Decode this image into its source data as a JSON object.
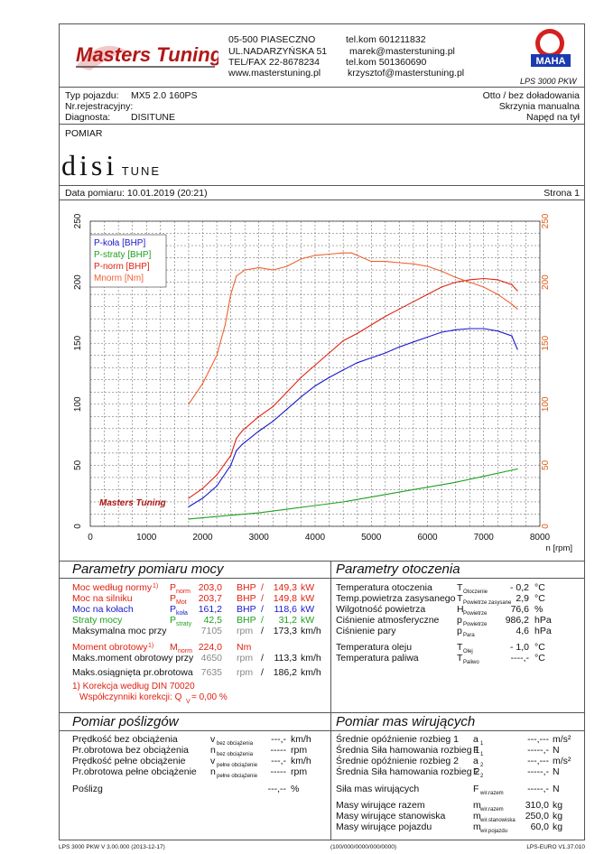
{
  "header": {
    "logo_text": "Masters Tuning",
    "address_line1": "05-500 PIASECZNO",
    "address_line2": "UL.NADARZYŃSKA 51",
    "address_line3": "TEL/FAX 22-8678234",
    "address_line4": "www.masterstuning.pl",
    "contact_line1": "tel.kom 601211832",
    "contact_line2": "marek@masterstuning.pl",
    "contact_line3": "tel.kom 501360690",
    "contact_line4": "krzysztof@masterstuning.pl",
    "maha_badge": "MAHA",
    "product": "LPS 3000 PKW"
  },
  "vehicle": {
    "type_label": "Typ pojazdu:",
    "type_value": "MX5 2.0 160PS",
    "reg_label": "Nr.rejestracyjny:",
    "reg_value": "",
    "diag_label": "Diagnosta:",
    "diag_value": "DISITUNE",
    "charge": "Otto / bez doładowania",
    "gearbox": "Skrzynia manualna",
    "drive": "Napęd na tył"
  },
  "measurement": {
    "title": "POMIAR",
    "brand_main": "disi",
    "brand_sub": "TUNE",
    "date_label": "Data pomiaru: 10.01.2019 (20:21)",
    "page_label": "Strona 1"
  },
  "chart_data": {
    "type": "line",
    "xlabel": "n [rpm]",
    "xlim": [
      0,
      8000
    ],
    "ylim_left": [
      0,
      250
    ],
    "ylim_right": [
      0,
      250
    ],
    "x_ticks": [
      "0",
      "1000",
      "2000",
      "3000",
      "4000",
      "5000",
      "6000",
      "7000",
      "8000"
    ],
    "y_ticks": [
      "0",
      "50",
      "100",
      "150",
      "200",
      "250"
    ],
    "legend": [
      {
        "label": "P-koła [BHP]",
        "color": "#1a1acc"
      },
      {
        "label": "P-straty [BHP]",
        "color": "#20a020"
      },
      {
        "label": "P-norm [BHP]",
        "color": "#e02010"
      },
      {
        "label": "Mnorm [Nm]",
        "color": "#f06030"
      }
    ],
    "series": [
      {
        "name": "P-koła [BHP]",
        "color": "#1a1acc",
        "x": [
          1750,
          2000,
          2250,
          2500,
          2600,
          2700,
          3000,
          3250,
          3500,
          3750,
          4000,
          4250,
          4500,
          4750,
          5000,
          5250,
          5500,
          5750,
          6000,
          6250,
          6500,
          6750,
          7000,
          7250,
          7500,
          7600
        ],
        "y": [
          16,
          23,
          33,
          50,
          62,
          67,
          78,
          86,
          96,
          106,
          115,
          122,
          128,
          134,
          138,
          142,
          147,
          151,
          155,
          159,
          161,
          162,
          162,
          160,
          156,
          145
        ]
      },
      {
        "name": "P-straty [BHP]",
        "color": "#20a020",
        "x": [
          1750,
          2500,
          3000,
          3500,
          4000,
          4500,
          5000,
          5500,
          6000,
          6500,
          7000,
          7600
        ],
        "y": [
          6,
          9,
          11,
          14,
          17,
          20,
          24,
          28,
          32,
          36,
          41,
          47
        ]
      },
      {
        "name": "P-norm [BHP]",
        "color": "#e02010",
        "x": [
          1750,
          2000,
          2250,
          2500,
          2600,
          2700,
          3000,
          3250,
          3500,
          3750,
          4000,
          4250,
          4500,
          4750,
          5000,
          5250,
          5500,
          5750,
          6000,
          6250,
          6500,
          6750,
          7000,
          7250,
          7500,
          7600
        ],
        "y": [
          23,
          31,
          42,
          58,
          72,
          78,
          90,
          98,
          110,
          122,
          132,
          142,
          152,
          158,
          165,
          172,
          178,
          184,
          190,
          196,
          200,
          202,
          203,
          202,
          198,
          193
        ]
      },
      {
        "name": "Mnorm [Nm]",
        "color": "#f06030",
        "x": [
          1750,
          2000,
          2250,
          2400,
          2500,
          2600,
          2750,
          3000,
          3250,
          3500,
          3750,
          4000,
          4250,
          4500,
          4650,
          4750,
          5000,
          5250,
          5500,
          5750,
          6000,
          6250,
          6500,
          6750,
          7000,
          7250,
          7500,
          7600
        ],
        "y": [
          100,
          117,
          140,
          165,
          190,
          205,
          210,
          212,
          210,
          213,
          219,
          222,
          223,
          224,
          224,
          222,
          217,
          217,
          216,
          215,
          213,
          209,
          204,
          200,
          196,
          190,
          182,
          178
        ]
      }
    ]
  },
  "power_params": {
    "title": "Parametry pomiaru mocy",
    "rows": [
      {
        "label": "Moc według normy",
        "note": "1)",
        "sym": "P",
        "sub": "norm",
        "v1": "203,0",
        "u1": "BHP",
        "sep": "/",
        "v2": "149,3",
        "u2": "kW",
        "color": "red"
      },
      {
        "label": "Moc na silniku",
        "note": "",
        "sym": "P",
        "sub": "Mot",
        "v1": "203,7",
        "u1": "BHP",
        "sep": "/",
        "v2": "149,8",
        "u2": "kW",
        "color": "red"
      },
      {
        "label": "Moc na kołach",
        "note": "",
        "sym": "P",
        "sub": "koła",
        "v1": "161,2",
        "u1": "BHP",
        "sep": "/",
        "v2": "118,6",
        "u2": "kW",
        "color": "blue"
      },
      {
        "label": "Straty mocy",
        "note": "",
        "sym": "P",
        "sub": "straty",
        "v1": "42,5",
        "u1": "BHP",
        "sep": "/",
        "v2": "31,2",
        "u2": "kW",
        "color": "green"
      },
      {
        "label": "Maksymalna moc przy",
        "note": "",
        "sym": "",
        "sub": "",
        "v1": "7105",
        "u1": "rpm",
        "sep": "/",
        "v2": "173,3",
        "u2": "km/h",
        "color": "black"
      }
    ],
    "torque": {
      "label": "Moment obrotowy",
      "note": "1)",
      "sym": "M",
      "sub": "norm",
      "value": "224,0",
      "unit": "Nm"
    },
    "torque_rpm": {
      "label": "Maks.moment obrotowy przy",
      "v1": "4650",
      "u1": "rpm",
      "sep": "/",
      "v2": "113,3",
      "u2": "km/h"
    },
    "max_rpm": {
      "label": "Maks.osiągnięta pr.obrotowa",
      "v1": "7635",
      "u1": "rpm",
      "sep": "/",
      "v2": "186,2",
      "u2": "km/h"
    },
    "correction_line1": "1) Korekcja według DIN 70020",
    "correction_line2": "Współczynniki korekcji: Q",
    "correction_sub": "V",
    "correction_value": "= 0,00 %"
  },
  "ambient": {
    "title": "Parametry otoczenia",
    "rows": [
      {
        "label": "Temperatura otoczenia",
        "sym": "T",
        "sub": "Otoczenie",
        "value": "- 0,2",
        "unit": "°C"
      },
      {
        "label": "Temp.powietrza zasysanego",
        "sym": "T",
        "sub": "Powietrze zasysane",
        "value": "2,9",
        "unit": "°C"
      },
      {
        "label": "Wilgotność powietrza",
        "sym": "H",
        "sub": "Powietrze",
        "value": "76,6",
        "unit": "%"
      },
      {
        "label": "Ciśnienie atmosferyczne",
        "sym": "p",
        "sub": "Powietrze",
        "value": "986,2",
        "unit": "hPa"
      },
      {
        "label": "Ciśnienie pary",
        "sym": "p",
        "sub": "Para",
        "value": "4,6",
        "unit": "hPa"
      }
    ],
    "rows2": [
      {
        "label": "Temperatura oleju",
        "sym": "T",
        "sub": "Olej",
        "value": "- 1,0",
        "unit": "°C"
      },
      {
        "label": "Temperatura paliwa",
        "sym": "T",
        "sub": "Paliwo",
        "value": "----,-",
        "unit": "°C"
      }
    ]
  },
  "slip": {
    "title": "Pomiar poślizgów",
    "rows": [
      {
        "label": "Prędkość bez obciążenia",
        "sym": "v",
        "sub": "bez obciążenia",
        "value": "---,-",
        "unit": "km/h"
      },
      {
        "label": "Pr.obrotowa bez obciążenia",
        "sym": "n",
        "sub": "bez obciążenia",
        "value": "-----",
        "unit": "rpm"
      },
      {
        "label": "Prędkość pełne obciążenie",
        "sym": "v",
        "sub": "pełne obciążenie",
        "value": "---,-",
        "unit": "km/h"
      },
      {
        "label": "Pr.obrotowa pełne obciążenie",
        "sym": "n",
        "sub": "pełne obciążenie",
        "value": "-----",
        "unit": "rpm"
      }
    ],
    "slip_row": {
      "label": "Poślizg",
      "value": "---,--",
      "unit": "%"
    }
  },
  "masses": {
    "title": "Pomiar mas wirujących",
    "rows": [
      {
        "label": "Średnie opóźnienie rozbieg 1",
        "sym": "a",
        "sub": "1",
        "value": "---,---",
        "unit": "m/s²"
      },
      {
        "label": "Średnia Siła hamowania rozbieg 1",
        "sym": "F",
        "sub": "1",
        "value": "-----,-",
        "unit": "N"
      },
      {
        "label": "Średnie opóźnienie rozbieg 2",
        "sym": "a",
        "sub": "2",
        "value": "---,---",
        "unit": "m/s²"
      },
      {
        "label": "Średnia Siła hamowania rozbieg 2",
        "sym": "F",
        "sub": "2",
        "value": "-----,-",
        "unit": "N"
      }
    ],
    "force_row": {
      "label": "Siła mas wirujących",
      "sym": "F",
      "sub": "wir.razem",
      "value": "-----,-",
      "unit": "N"
    },
    "rows2": [
      {
        "label": "Masy wirujące razem",
        "sym": "m",
        "sub": "wir.razem",
        "value": "310,0",
        "unit": "kg"
      },
      {
        "label": "Masy wirujące stanowiska",
        "sym": "m",
        "sub": "wir.stanowiska",
        "value": "250,0",
        "unit": "kg"
      },
      {
        "label": "Masy wirujące pojazdu",
        "sym": "m",
        "sub": "wir.pojazdu",
        "value": "60,0",
        "unit": "kg"
      }
    ]
  },
  "footer": {
    "left": "LPS 3000 PKW V 3.00.000 (2013-12-17)",
    "center": "(100/000/0000/000/0000)",
    "right": "LPS-EURO V1.37.010"
  }
}
